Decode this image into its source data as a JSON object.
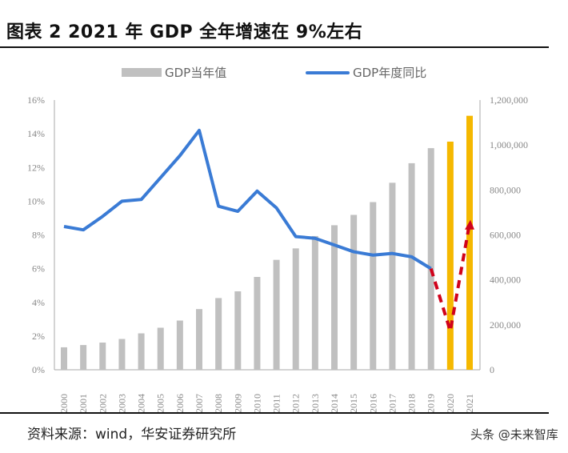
{
  "title": "图表 2 2021 年 GDP 全年增速在 9%左右",
  "source": "资料来源：wind，华安证券研究所",
  "watermark": "头条 @未来智库",
  "colors": {
    "bar": "#c0c0c0",
    "bar_highlight": "#f5b800",
    "line": "#3a7bd5",
    "forecast": "#d0021b"
  },
  "chart_data": {
    "type": "bar+line",
    "categories": [
      "2000",
      "2001",
      "2002",
      "2003",
      "2004",
      "2005",
      "2006",
      "2007",
      "2008",
      "2009",
      "2010",
      "2011",
      "2012",
      "2013",
      "2014",
      "2015",
      "2016",
      "2017",
      "2018",
      "2019",
      "2020",
      "2021"
    ],
    "series": [
      {
        "name": "GDP当年值",
        "type": "bar",
        "axis": "right",
        "values": [
          100000,
          110000,
          121000,
          137000,
          162000,
          187000,
          219000,
          270000,
          319000,
          349000,
          413000,
          489000,
          540000,
          595000,
          643000,
          689000,
          746000,
          832000,
          919000,
          986000,
          1015000,
          1130000
        ],
        "highlight": [
          "2020",
          "2021"
        ]
      },
      {
        "name": "GDP年度同比",
        "type": "line",
        "axis": "left",
        "values": [
          8.5,
          8.3,
          9.1,
          10.0,
          10.1,
          11.4,
          12.7,
          14.2,
          9.7,
          9.4,
          10.6,
          9.6,
          7.9,
          7.8,
          7.4,
          7.0,
          6.8,
          6.9,
          6.7,
          6.0,
          null,
          null
        ]
      },
      {
        "type": "dashed-line",
        "axis": "left",
        "x": [
          "2019",
          "2020",
          "2021"
        ],
        "values": [
          6.0,
          2.3,
          8.7
        ]
      }
    ],
    "left_axis": {
      "ticks": [
        "0%",
        "2%",
        "4%",
        "6%",
        "8%",
        "10%",
        "12%",
        "14%",
        "16%"
      ],
      "range": [
        0,
        16
      ]
    },
    "right_axis": {
      "ticks": [
        "0",
        "200,000",
        "400,000",
        "600,000",
        "800,000",
        "1,000,000",
        "1,200,000"
      ],
      "range": [
        0,
        1200000
      ]
    },
    "legend_position": "top",
    "grid": false
  }
}
